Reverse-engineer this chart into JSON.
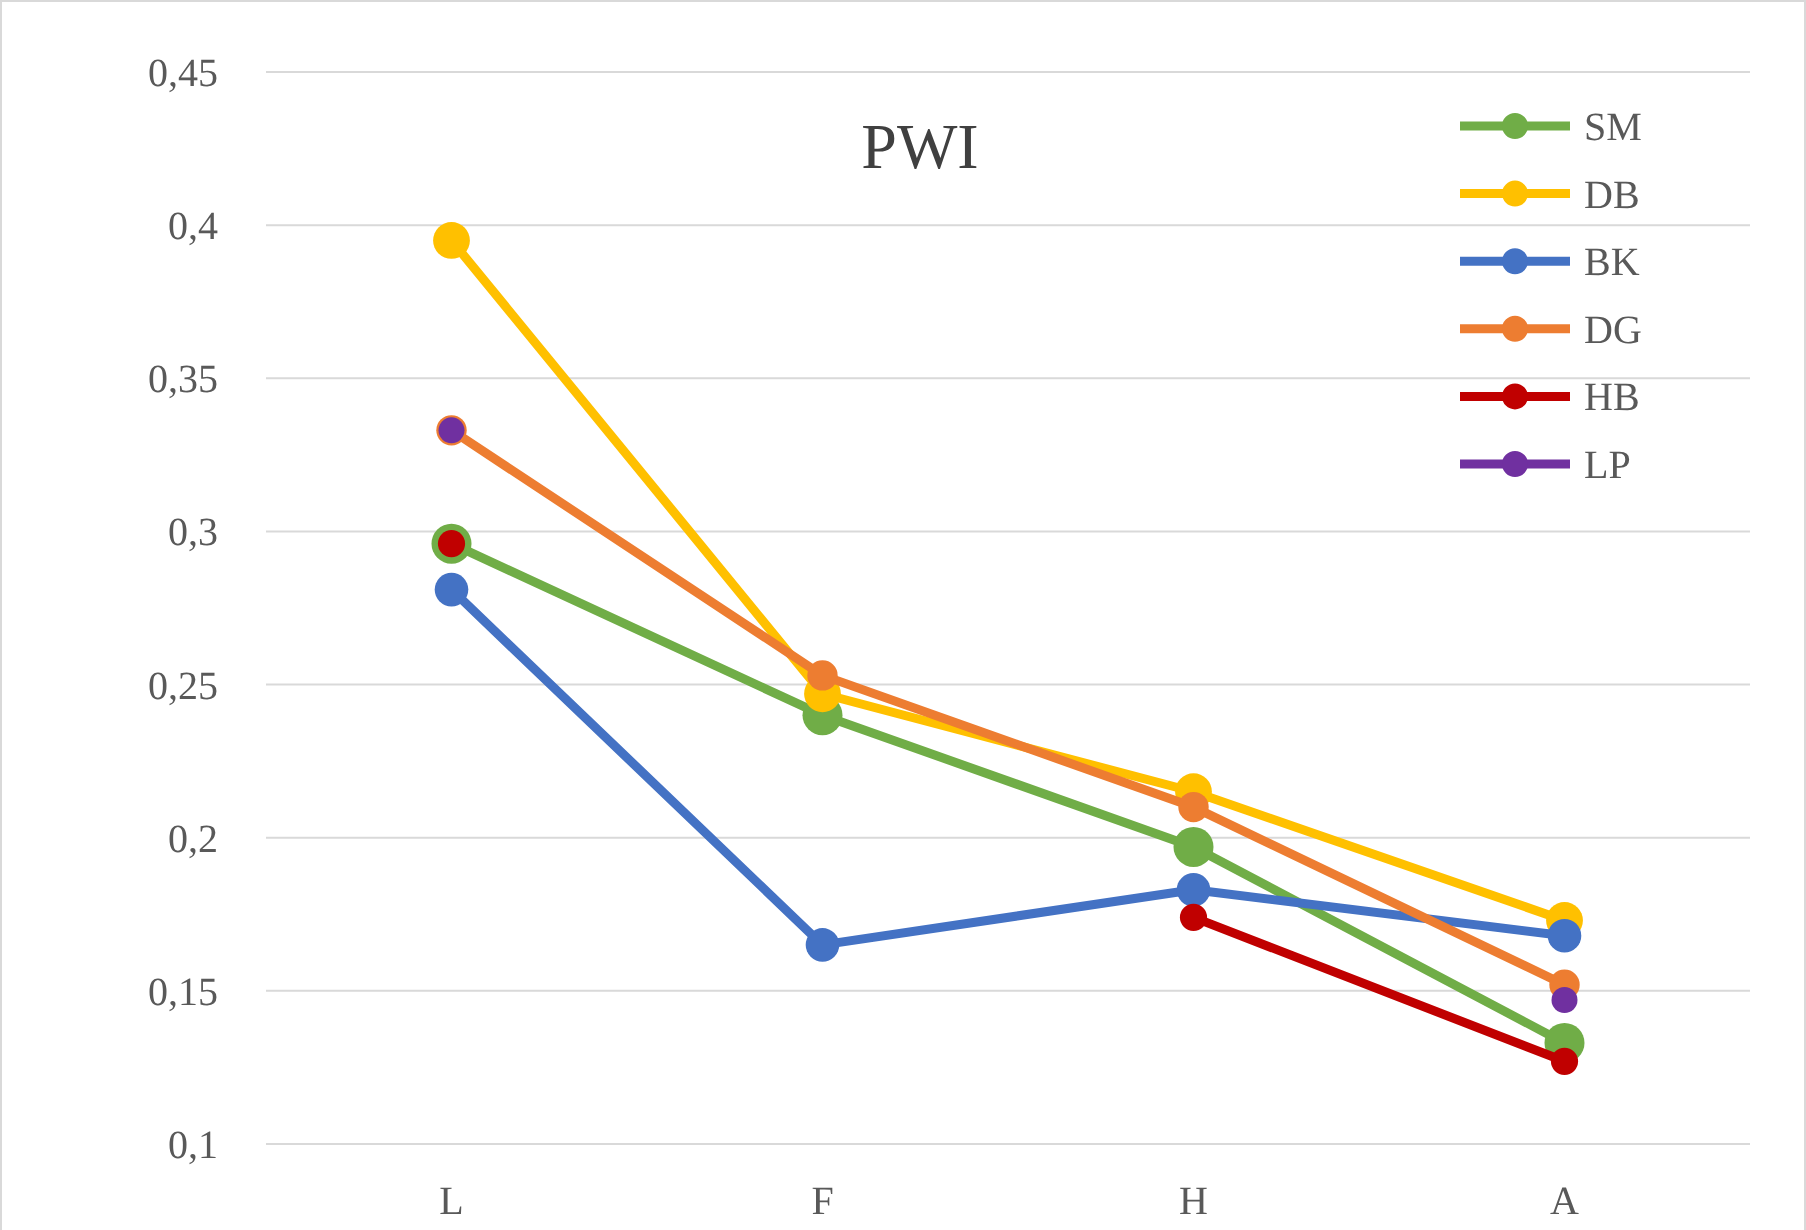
{
  "chart_data": {
    "type": "line",
    "title": "PWI",
    "categories": [
      "L",
      "F",
      "H",
      "A"
    ],
    "series": [
      {
        "name": "SM",
        "color": "#70ad47",
        "values": [
          0.296,
          0.24,
          0.197,
          0.133
        ]
      },
      {
        "name": "DB",
        "color": "#ffc000",
        "values": [
          0.395,
          0.247,
          0.215,
          0.173
        ]
      },
      {
        "name": "BK",
        "color": "#4472c4",
        "values": [
          0.281,
          0.165,
          0.183,
          0.168
        ]
      },
      {
        "name": "DG",
        "color": "#ed7d31",
        "values": [
          0.333,
          0.253,
          0.21,
          0.152
        ]
      },
      {
        "name": "HB",
        "color": "#c00000",
        "values": [
          0.296,
          null,
          0.174,
          0.127
        ]
      },
      {
        "name": "LP",
        "type": "scatter",
        "color": "#7030a0",
        "values": [
          0.333,
          null,
          null,
          0.147
        ]
      }
    ],
    "ylim": [
      0.1,
      0.45
    ],
    "yticks": [
      {
        "value": 0.1,
        "label": "0,1"
      },
      {
        "value": 0.15,
        "label": "0,15"
      },
      {
        "value": 0.2,
        "label": "0,2"
      },
      {
        "value": 0.25,
        "label": "0,25"
      },
      {
        "value": 0.3,
        "label": "0,3"
      },
      {
        "value": 0.35,
        "label": "0,35"
      },
      {
        "value": 0.4,
        "label": "0,4"
      },
      {
        "value": 0.45,
        "label": "0,45"
      }
    ],
    "grid": "y",
    "legend": "top right",
    "marker": "circle",
    "line_style": "solid"
  }
}
